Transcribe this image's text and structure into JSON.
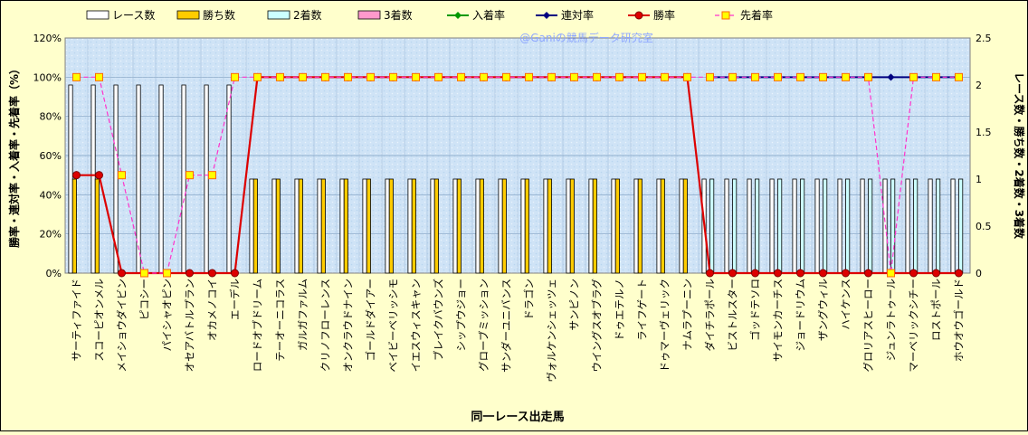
{
  "watermark": "@Ganiの競馬データ研究室",
  "colors": {
    "background": "#ffffcc",
    "plot_background": "#cfe3f6",
    "race_bar": "#ffffff",
    "win_bar": "#ffcc00",
    "second_bar": "#ccffff",
    "third_bar": "#ff99cc",
    "place_rate": "#009900",
    "rentai_rate": "#000080",
    "win_rate": "#dd0000",
    "senchaku_rate": "#ff33cc",
    "senchaku_marker": "#ffff00"
  },
  "chart_data": {
    "type": "bar",
    "xlabel": "同一レース出走馬",
    "ylabel_left": "勝率・連対率・入着率・先着率（%）",
    "ylabel_right": "レース数・勝ち数・2着数・3着数",
    "ylim_left": [
      0,
      120
    ],
    "ylim_right": [
      0,
      2.5
    ],
    "left_ticks": [
      "0%",
      "20%",
      "40%",
      "60%",
      "80%",
      "100%",
      "120%"
    ],
    "right_ticks": [
      "0",
      "0.5",
      "1",
      "1.5",
      "2",
      "2.5"
    ],
    "grid": true,
    "legend_position": "top",
    "legend": [
      "レース数",
      "勝ち数",
      "2着数",
      "3着数",
      "入着率",
      "連対率",
      "勝率",
      "先着率"
    ],
    "categories": [
      "サーティファイド",
      "スコーピオンメル",
      "メイショウダイビン",
      "ピコシー",
      "パイシャオピン",
      "オセアバトルプラン",
      "オカメノコイ",
      "エーデル",
      "ロードオブドリーム",
      "テーオーニコラス",
      "ガルガファルム",
      "クリノフローレンス",
      "オンクラウドナイン",
      "ゴールドダイアー",
      "ベイビーベリッシモ",
      "イエスウィスキャン",
      "ブレイクバウンズ",
      "シップウジョー",
      "グローブミッション",
      "サンダーユニバンス",
      "ドラゴン",
      "ヴォルケンシェッツェ",
      "サンピノン",
      "ウイングスオブラグ",
      "ドゥエテルノ",
      "ライフゲート",
      "ドゥマーヴェリック",
      "ナムラプーニン",
      "ダイチラポール",
      "ビストルスター",
      "ゴッドテソロ",
      "サイモンカーチス",
      "ジョードリウム",
      "ザングウィル",
      "ハイケンス",
      "グロリアスヒーロー",
      "ジュンラトゥール",
      "マーベリックシチー",
      "ロストポール",
      "ホウオウゴールド"
    ],
    "series": [
      {
        "name": "レース数",
        "type": "bar",
        "axis": "right",
        "values": [
          2,
          2,
          2,
          2,
          2,
          2,
          2,
          2,
          1,
          1,
          1,
          1,
          1,
          1,
          1,
          1,
          1,
          1,
          1,
          1,
          1,
          1,
          1,
          1,
          1,
          1,
          1,
          1,
          1,
          1,
          1,
          1,
          1,
          1,
          1,
          1,
          1,
          1,
          1,
          1
        ]
      },
      {
        "name": "勝ち数",
        "type": "bar",
        "axis": "right",
        "values": [
          1,
          1,
          0,
          0,
          0,
          0,
          0,
          0,
          1,
          1,
          1,
          1,
          1,
          1,
          1,
          1,
          1,
          1,
          1,
          1,
          1,
          1,
          1,
          1,
          1,
          1,
          1,
          1,
          0,
          0,
          0,
          0,
          0,
          0,
          0,
          0,
          0,
          0,
          0,
          0
        ]
      },
      {
        "name": "2着数",
        "type": "bar",
        "axis": "right",
        "values": [
          0,
          0,
          0,
          0,
          0,
          0,
          0,
          0,
          0,
          0,
          0,
          0,
          0,
          0,
          0,
          0,
          0,
          0,
          0,
          0,
          0,
          0,
          0,
          0,
          0,
          0,
          0,
          0,
          1,
          1,
          1,
          1,
          1,
          1,
          1,
          1,
          1,
          1,
          1,
          1
        ]
      },
      {
        "name": "3着数",
        "type": "bar",
        "axis": "right",
        "values": [
          0,
          0,
          0,
          0,
          0,
          0,
          0,
          0,
          0,
          0,
          0,
          0,
          0,
          0,
          0,
          0,
          0,
          0,
          0,
          0,
          0,
          0,
          0,
          0,
          0,
          0,
          0,
          0,
          0,
          0,
          0,
          0,
          0,
          0,
          0,
          0,
          0,
          0,
          0,
          0
        ]
      },
      {
        "name": "入着率",
        "type": "line",
        "axis": "left",
        "values": [
          null,
          null,
          null,
          null,
          null,
          null,
          null,
          null,
          null,
          null,
          null,
          null,
          null,
          null,
          null,
          null,
          null,
          null,
          null,
          null,
          null,
          null,
          null,
          null,
          null,
          null,
          null,
          null,
          null,
          null,
          null,
          null,
          null,
          null,
          null,
          null,
          null,
          null,
          null,
          null
        ]
      },
      {
        "name": "連対率",
        "type": "line",
        "axis": "left",
        "values": [
          null,
          null,
          null,
          null,
          null,
          null,
          null,
          null,
          null,
          null,
          null,
          null,
          null,
          null,
          null,
          null,
          null,
          null,
          null,
          null,
          null,
          null,
          null,
          null,
          null,
          null,
          null,
          null,
          100,
          100,
          100,
          100,
          100,
          100,
          100,
          100,
          100,
          100,
          100,
          100
        ]
      },
      {
        "name": "勝率",
        "type": "line",
        "axis": "left",
        "values": [
          50,
          50,
          0,
          0,
          0,
          0,
          0,
          0,
          100,
          100,
          100,
          100,
          100,
          100,
          100,
          100,
          100,
          100,
          100,
          100,
          100,
          100,
          100,
          100,
          100,
          100,
          100,
          100,
          0,
          0,
          0,
          0,
          0,
          0,
          0,
          0,
          0,
          0,
          0,
          0
        ]
      },
      {
        "name": "先着率",
        "type": "line",
        "axis": "left",
        "values": [
          100,
          100,
          50,
          0,
          0,
          50,
          50,
          100,
          100,
          100,
          100,
          100,
          100,
          100,
          100,
          100,
          100,
          100,
          100,
          100,
          100,
          100,
          100,
          100,
          100,
          100,
          100,
          100,
          100,
          100,
          100,
          100,
          100,
          100,
          100,
          100,
          0,
          100,
          100,
          100
        ]
      }
    ]
  }
}
